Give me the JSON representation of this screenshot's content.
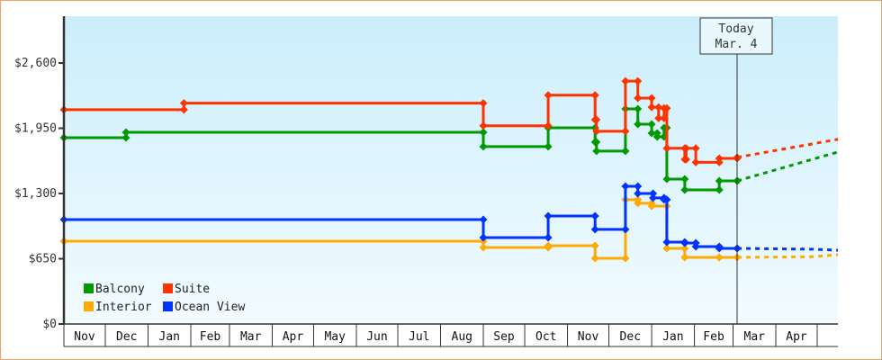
{
  "chart_data": {
    "type": "line",
    "step": "after",
    "xlabel": "",
    "ylabel": "",
    "xlim": [
      "2017-11-01",
      "2019-05-16"
    ],
    "ylim": [
      0,
      3000
    ],
    "yticks": [
      0,
      650,
      1300,
      1950,
      2600
    ],
    "ytick_labels": [
      "$0",
      "$650",
      "$1,300",
      "$1,950",
      "$2,600"
    ],
    "month_labels": [
      "Nov",
      "Dec",
      "Jan",
      "Feb",
      "Mar",
      "Apr",
      "May",
      "Jun",
      "Jul",
      "Aug",
      "Sep",
      "Oct",
      "Nov",
      "Dec",
      "Jan",
      "Feb",
      "Mar",
      "Apr"
    ],
    "grid": false,
    "legend_placement": "bottom-left",
    "today": {
      "label_line1": "Today",
      "label_line2": "Mar. 4",
      "date": "2019-03-04"
    },
    "series": [
      {
        "name": "Balcony",
        "color": "#009900",
        "points": [
          [
            "2017-11-01",
            1856
          ],
          [
            "2017-12-16",
            1910
          ],
          [
            "2018-09-01",
            1767
          ],
          [
            "2018-10-18",
            1955
          ],
          [
            "2018-11-21",
            1812
          ],
          [
            "2018-11-22",
            1722
          ],
          [
            "2018-12-13",
            2143
          ],
          [
            "2018-12-22",
            1990
          ],
          [
            "2019-01-01",
            1901
          ],
          [
            "2019-01-05",
            1865
          ],
          [
            "2019-01-10",
            1955
          ],
          [
            "2019-01-12",
            1444
          ],
          [
            "2019-01-25",
            1336
          ],
          [
            "2019-02-19",
            1426
          ],
          [
            "2019-03-04",
            1426
          ]
        ],
        "projection": [
          [
            "2019-03-04",
            1426
          ],
          [
            "2019-05-16",
            1713
          ]
        ]
      },
      {
        "name": "Suite",
        "color": "#ff3300",
        "points": [
          [
            "2017-11-01",
            2135
          ],
          [
            "2018-01-27",
            2200
          ],
          [
            "2018-09-01",
            1975
          ],
          [
            "2018-10-18",
            2280
          ],
          [
            "2018-11-21",
            2035
          ],
          [
            "2018-11-22",
            1920
          ],
          [
            "2018-12-13",
            2420
          ],
          [
            "2018-12-22",
            2250
          ],
          [
            "2019-01-01",
            2160
          ],
          [
            "2019-01-06",
            2050
          ],
          [
            "2019-01-10",
            2150
          ],
          [
            "2019-01-12",
            1750
          ],
          [
            "2019-01-25",
            1640
          ],
          [
            "2019-01-26",
            1750
          ],
          [
            "2019-02-02",
            1610
          ],
          [
            "2019-02-19",
            1650
          ],
          [
            "2019-03-04",
            1660
          ]
        ],
        "projection": [
          [
            "2019-03-04",
            1660
          ],
          [
            "2019-05-16",
            1840
          ]
        ]
      },
      {
        "name": "Interior",
        "color": "#ffaa00",
        "points": [
          [
            "2017-11-01",
            825
          ],
          [
            "2018-09-01",
            762
          ],
          [
            "2018-10-18",
            780
          ],
          [
            "2018-11-21",
            655
          ],
          [
            "2018-12-13",
            1238
          ],
          [
            "2018-12-22",
            1202
          ],
          [
            "2019-01-01",
            1175
          ],
          [
            "2019-01-12",
            753
          ],
          [
            "2019-01-25",
            664
          ],
          [
            "2019-02-19",
            664
          ],
          [
            "2019-03-04",
            664
          ]
        ],
        "projection": [
          [
            "2019-03-04",
            664
          ],
          [
            "2019-04-28",
            670
          ],
          [
            "2019-05-16",
            690
          ]
        ]
      },
      {
        "name": "Ocean View",
        "color": "#0033ff",
        "points": [
          [
            "2017-11-01",
            1040
          ],
          [
            "2018-09-01",
            861
          ],
          [
            "2018-10-18",
            1076
          ],
          [
            "2018-11-21",
            942
          ],
          [
            "2018-12-13",
            1372
          ],
          [
            "2018-12-22",
            1300
          ],
          [
            "2019-01-02",
            1256
          ],
          [
            "2019-01-10",
            1238
          ],
          [
            "2019-01-12",
            816
          ],
          [
            "2019-01-25",
            807
          ],
          [
            "2019-02-02",
            771
          ],
          [
            "2019-02-19",
            753
          ],
          [
            "2019-03-04",
            753
          ]
        ],
        "projection": [
          [
            "2019-03-04",
            753
          ],
          [
            "2019-04-28",
            745
          ],
          [
            "2019-05-16",
            735
          ]
        ]
      }
    ]
  }
}
